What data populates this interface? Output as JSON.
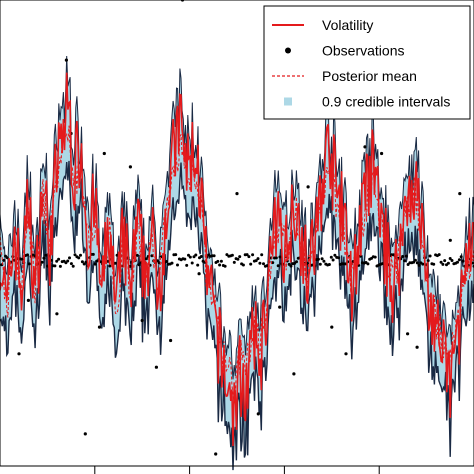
{
  "chart_data": {
    "type": "line",
    "title": "",
    "xlabel": "",
    "ylabel": "",
    "grid": false,
    "legend_placement": "top-right",
    "xlim": [
      0,
      1000
    ],
    "ylim": [
      -3.2,
      3.9
    ],
    "x_ticks": [
      200,
      400,
      600,
      800
    ],
    "colors": {
      "volatility": "#e41a1c",
      "observations": "#000000",
      "posterior_mean": "#e41a1c",
      "credible_band": "#add8e6",
      "band_edge": "#1a2a44"
    },
    "legend": [
      {
        "key": "volatility",
        "label": "Volatility",
        "style": "line"
      },
      {
        "key": "observations",
        "label": "Observations",
        "style": "point"
      },
      {
        "key": "posterior_mean",
        "label": "Posterior mean",
        "style": "dashed"
      },
      {
        "key": "credible_band",
        "label": "0.9 credible intervals",
        "style": "square"
      }
    ],
    "volatility_knots": [
      [
        0,
        0.2
      ],
      [
        15,
        -0.9
      ],
      [
        30,
        0.5
      ],
      [
        45,
        -0.5
      ],
      [
        60,
        0.9
      ],
      [
        75,
        -0.6
      ],
      [
        90,
        1.2
      ],
      [
        105,
        0.2
      ],
      [
        120,
        1.4
      ],
      [
        135,
        2.0
      ],
      [
        145,
        2.4
      ],
      [
        155,
        1.2
      ],
      [
        170,
        1.8
      ],
      [
        185,
        0.3
      ],
      [
        200,
        0.8
      ],
      [
        215,
        -0.6
      ],
      [
        230,
        0.6
      ],
      [
        245,
        -0.9
      ],
      [
        260,
        0.4
      ],
      [
        275,
        -0.5
      ],
      [
        290,
        0.5
      ],
      [
        305,
        -0.2
      ],
      [
        320,
        0.3
      ],
      [
        335,
        -0.4
      ],
      [
        350,
        0.7
      ],
      [
        365,
        1.5
      ],
      [
        380,
        2.1
      ],
      [
        395,
        1.3
      ],
      [
        410,
        1.7
      ],
      [
        425,
        0.9
      ],
      [
        435,
        -0.2
      ],
      [
        445,
        -0.6
      ],
      [
        455,
        -1.0
      ],
      [
        470,
        -1.6
      ],
      [
        485,
        -2.0
      ],
      [
        495,
        -2.3
      ],
      [
        505,
        -1.7
      ],
      [
        520,
        -1.9
      ],
      [
        535,
        -1.2
      ],
      [
        550,
        -1.4
      ],
      [
        560,
        -0.8
      ],
      [
        575,
        0.2
      ],
      [
        590,
        0.6
      ],
      [
        605,
        0.1
      ],
      [
        620,
        1.0
      ],
      [
        635,
        0.4
      ],
      [
        650,
        -0.3
      ],
      [
        665,
        0.3
      ],
      [
        680,
        1.2
      ],
      [
        695,
        1.7
      ],
      [
        710,
        1.0
      ],
      [
        725,
        0.6
      ],
      [
        740,
        -0.4
      ],
      [
        755,
        0.2
      ],
      [
        770,
        0.9
      ],
      [
        785,
        1.4
      ],
      [
        800,
        0.8
      ],
      [
        815,
        0.1
      ],
      [
        830,
        -0.4
      ],
      [
        845,
        0.2
      ],
      [
        860,
        1.0
      ],
      [
        875,
        1.2
      ],
      [
        890,
        0.4
      ],
      [
        905,
        -0.6
      ],
      [
        920,
        -1.0
      ],
      [
        935,
        -1.5
      ],
      [
        950,
        -1.8
      ],
      [
        965,
        -1.2
      ],
      [
        980,
        -0.2
      ],
      [
        1000,
        0.1
      ]
    ],
    "outlier_observations": [
      [
        140,
        3.0
      ],
      [
        180,
        -2.6
      ],
      [
        385,
        3.9
      ],
      [
        455,
        -2.9
      ],
      [
        700,
        -1.0
      ],
      [
        730,
        -1.4
      ],
      [
        590,
        -0.7
      ],
      [
        860,
        -1.1
      ],
      [
        120,
        -0.8
      ],
      [
        60,
        -0.6
      ],
      [
        300,
        -0.9
      ],
      [
        330,
        -1.6
      ],
      [
        220,
        1.6
      ],
      [
        420,
        -0.2
      ],
      [
        650,
        1.1
      ],
      [
        805,
        1.6
      ],
      [
        950,
        0.3
      ],
      [
        970,
        1.0
      ],
      [
        500,
        1.0
      ],
      [
        620,
        -1.7
      ],
      [
        40,
        -1.4
      ],
      [
        275,
        1.4
      ],
      [
        360,
        -1.2
      ],
      [
        880,
        -1.3
      ],
      [
        150,
        1.9
      ],
      [
        770,
        1.7
      ],
      [
        210,
        -1.0
      ],
      [
        545,
        -2.3
      ]
    ]
  }
}
